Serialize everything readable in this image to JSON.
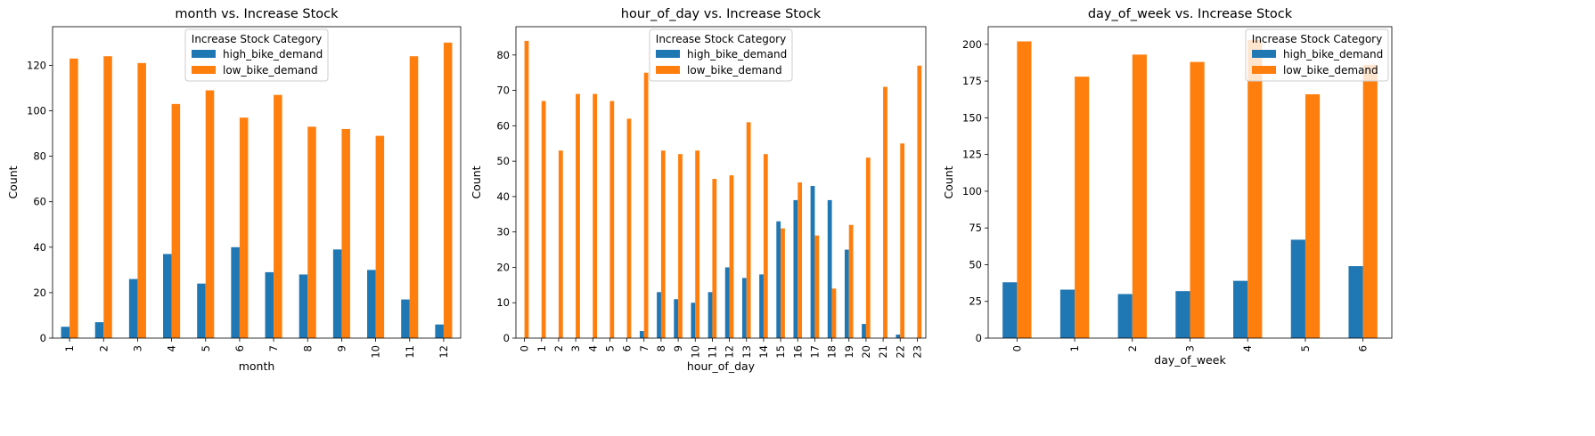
{
  "chart_data": [
    {
      "type": "bar",
      "title": "month vs. Increase Stock",
      "xlabel": "month",
      "ylabel": "Count",
      "ylim": [
        0,
        137
      ],
      "yticks": [
        0,
        20,
        40,
        60,
        80,
        100,
        120
      ],
      "categories": [
        "1",
        "2",
        "3",
        "4",
        "5",
        "6",
        "7",
        "8",
        "9",
        "10",
        "11",
        "12"
      ],
      "legend": {
        "title": "Increase Stock Category",
        "placement": "upper-center"
      },
      "series": [
        {
          "name": "high_bike_demand",
          "color": "#1f77b4",
          "values": [
            5,
            7,
            26,
            37,
            24,
            40,
            29,
            28,
            39,
            30,
            17,
            6
          ]
        },
        {
          "name": "low_bike_demand",
          "color": "#ff7f0e",
          "values": [
            123,
            124,
            121,
            103,
            109,
            97,
            107,
            93,
            92,
            89,
            124,
            130
          ]
        }
      ]
    },
    {
      "type": "bar",
      "title": "hour_of_day vs. Increase Stock",
      "xlabel": "hour_of_day",
      "ylabel": "Count",
      "ylim": [
        0,
        88
      ],
      "yticks": [
        0,
        10,
        20,
        30,
        40,
        50,
        60,
        70,
        80
      ],
      "categories": [
        "0",
        "1",
        "2",
        "3",
        "4",
        "5",
        "6",
        "7",
        "8",
        "9",
        "10",
        "11",
        "12",
        "13",
        "14",
        "15",
        "16",
        "17",
        "18",
        "19",
        "20",
        "21",
        "22",
        "23"
      ],
      "legend": {
        "title": "Increase Stock Category",
        "placement": "upper-center"
      },
      "series": [
        {
          "name": "high_bike_demand",
          "color": "#1f77b4",
          "values": [
            0,
            0,
            0,
            0,
            0,
            0,
            0,
            2,
            13,
            11,
            10,
            13,
            20,
            17,
            18,
            33,
            39,
            43,
            39,
            25,
            4,
            0,
            1,
            0
          ]
        },
        {
          "name": "low_bike_demand",
          "color": "#ff7f0e",
          "values": [
            84,
            67,
            53,
            69,
            69,
            67,
            62,
            75,
            53,
            52,
            53,
            45,
            46,
            61,
            52,
            31,
            44,
            29,
            14,
            32,
            51,
            71,
            55,
            77
          ]
        }
      ]
    },
    {
      "type": "bar",
      "title": "day_of_week vs. Increase Stock",
      "xlabel": "day_of_week",
      "ylabel": "Count",
      "ylim": [
        0,
        212
      ],
      "yticks": [
        0,
        25,
        50,
        75,
        100,
        125,
        150,
        175,
        200
      ],
      "categories": [
        "0",
        "1",
        "2",
        "3",
        "4",
        "5",
        "6"
      ],
      "legend": {
        "title": "Increase Stock Category",
        "placement": "upper-right"
      },
      "series": [
        {
          "name": "high_bike_demand",
          "color": "#1f77b4",
          "values": [
            38,
            33,
            30,
            32,
            39,
            67,
            49
          ]
        },
        {
          "name": "low_bike_demand",
          "color": "#ff7f0e",
          "values": [
            202,
            178,
            193,
            188,
            203,
            166,
            186
          ]
        }
      ]
    }
  ]
}
